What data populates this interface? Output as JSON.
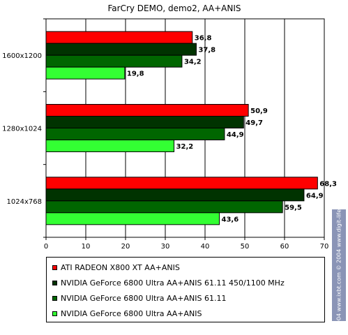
{
  "chart_data": {
    "type": "bar",
    "orientation": "horizontal",
    "title": "FarCry DEMO, demo2, AA+ANIS",
    "categories": [
      "1600x1200",
      "1280x1024",
      "1024x768"
    ],
    "series": [
      {
        "name": "ATI RADEON X800 XT AA+ANIS",
        "color": "#ff0000",
        "values": [
          36.8,
          50.9,
          68.3
        ],
        "labels": [
          "36,8",
          "50,9",
          "68,3"
        ]
      },
      {
        "name": "NVIDIA GeForce 6800 Ultra AA+ANIS 61.11 450/1100 MHz",
        "color": "#003300",
        "values": [
          37.8,
          49.7,
          64.9
        ],
        "labels": [
          "37,8",
          "49,7",
          "64,9"
        ]
      },
      {
        "name": "NVIDIA GeForce 6800 Ultra AA+ANIS 61.11",
        "color": "#006600",
        "values": [
          34.2,
          44.9,
          59.5
        ],
        "labels": [
          "34,2",
          "44,9",
          "59,5"
        ]
      },
      {
        "name": "NVIDIA GeForce 6800 Ultra AA+ANIS",
        "color": "#33ff33",
        "values": [
          19.8,
          32.2,
          43.6
        ],
        "labels": [
          "19,8",
          "32,2",
          "43,6"
        ]
      }
    ],
    "xlim": [
      0,
      70
    ],
    "xticks": [
      "0",
      "10",
      "20",
      "30",
      "40",
      "50",
      "60",
      "70"
    ],
    "grid": true,
    "legend_position": "bottom"
  },
  "watermark": "© 2004 www.ixbt.com  © 2004 www.digit-life.com"
}
